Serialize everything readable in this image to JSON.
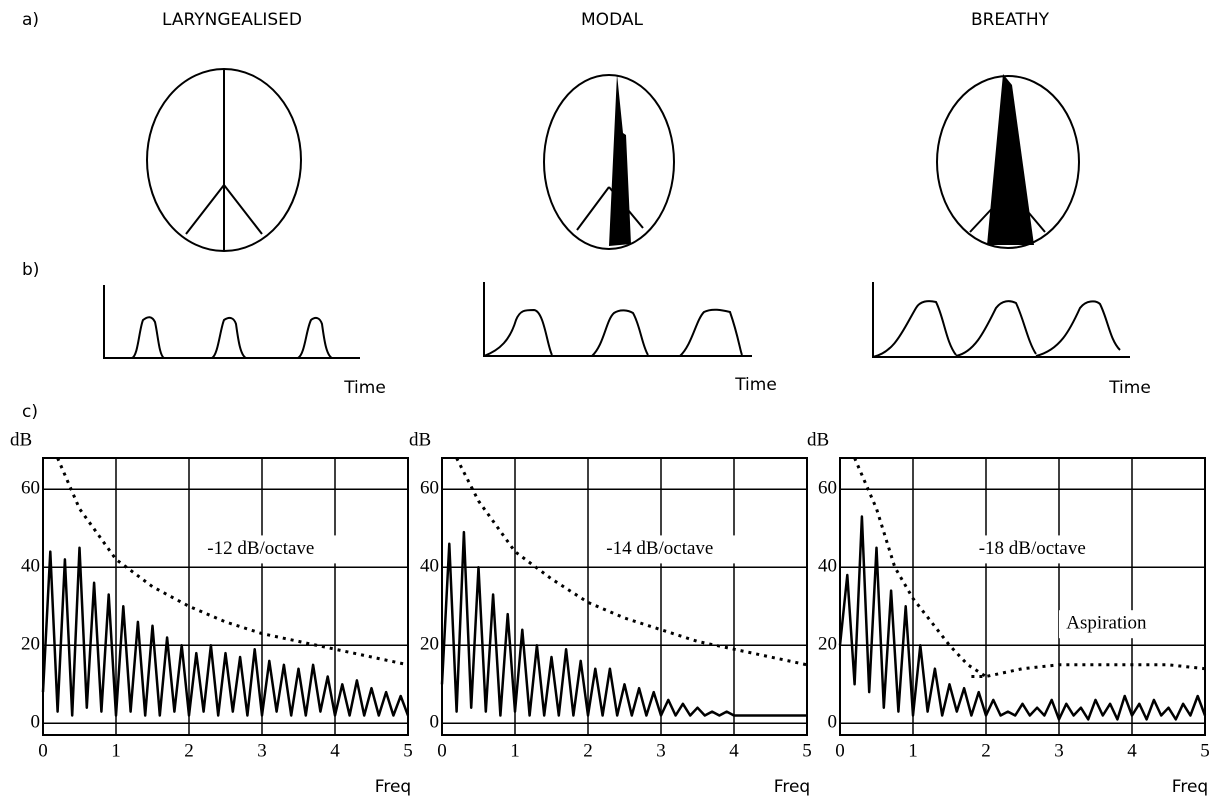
{
  "labels": {
    "a": "a)",
    "b": "b)",
    "c": "c)"
  },
  "columns": [
    {
      "title": "LARYNGEALISED"
    },
    {
      "title": "MODAL"
    },
    {
      "title": "BREATHY"
    }
  ],
  "waveform_axis_label": "Time",
  "chart_data": [
    {
      "type": "line",
      "annotation": "-12 dB/octave",
      "x_label": "Freq",
      "y_label": "dB",
      "xlim": [
        0,
        5
      ],
      "ylim": [
        -3,
        68
      ],
      "xticks": [
        0,
        1,
        2,
        3,
        4,
        5
      ],
      "yticks": [
        0,
        20,
        40,
        60
      ],
      "grid": true,
      "series": [
        {
          "color": "#000000",
          "style": "solid",
          "x": [
            0,
            0.1,
            0.2,
            0.3,
            0.4,
            0.5,
            0.6,
            0.7,
            0.8,
            0.9,
            1,
            1.1,
            1.2,
            1.3,
            1.4,
            1.5,
            1.6,
            1.7,
            1.8,
            1.9,
            2,
            2.1,
            2.2,
            2.3,
            2.4,
            2.5,
            2.6,
            2.7,
            2.8,
            2.9,
            3,
            3.1,
            3.2,
            3.3,
            3.4,
            3.5,
            3.6,
            3.7,
            3.8,
            3.9,
            4,
            4.1,
            4.2,
            4.3,
            4.4,
            4.5,
            4.6,
            4.7,
            4.8,
            4.9,
            5
          ],
          "values": [
            8,
            44,
            3,
            42,
            2,
            45,
            4,
            36,
            3,
            33,
            2,
            30,
            3,
            26,
            2,
            25,
            2,
            22,
            3,
            20,
            2,
            18,
            3,
            20,
            2,
            18,
            3,
            17,
            2,
            19,
            2,
            16,
            3,
            15,
            2,
            14,
            2,
            15,
            3,
            12,
            2,
            10,
            2,
            11,
            2,
            9,
            2,
            8,
            2,
            7,
            2
          ]
        },
        {
          "color": "#000000",
          "style": "dashed",
          "x": [
            0.2,
            0.5,
            1,
            1.5,
            2,
            2.5,
            3,
            3.5,
            4,
            4.5,
            5
          ],
          "values": [
            68,
            55,
            42,
            35,
            30,
            26,
            23,
            21,
            19,
            17,
            15
          ]
        }
      ]
    },
    {
      "type": "line",
      "annotation": "-14 dB/octave",
      "x_label": "Freq",
      "y_label": "dB",
      "xlim": [
        0,
        5
      ],
      "ylim": [
        -3,
        68
      ],
      "xticks": [
        0,
        1,
        2,
        3,
        4,
        5
      ],
      "yticks": [
        0,
        20,
        40,
        60
      ],
      "grid": true,
      "series": [
        {
          "color": "#000000",
          "style": "solid",
          "x": [
            0,
            0.1,
            0.2,
            0.3,
            0.4,
            0.5,
            0.6,
            0.7,
            0.8,
            0.9,
            1,
            1.1,
            1.2,
            1.3,
            1.4,
            1.5,
            1.6,
            1.7,
            1.8,
            1.9,
            2,
            2.1,
            2.2,
            2.3,
            2.4,
            2.5,
            2.6,
            2.7,
            2.8,
            2.9,
            3,
            3.1,
            3.2,
            3.3,
            3.4,
            3.5,
            3.6,
            3.7,
            3.8,
            3.9,
            4,
            4.1,
            4.2,
            4.3,
            4.4,
            4.5,
            4.6,
            4.7,
            4.8,
            4.9,
            5
          ],
          "values": [
            10,
            46,
            3,
            49,
            4,
            40,
            3,
            33,
            2,
            28,
            3,
            24,
            2,
            20,
            2,
            17,
            2,
            19,
            2,
            16,
            2,
            14,
            2,
            14,
            2,
            10,
            2,
            9,
            2,
            8,
            2,
            6,
            2,
            5,
            2,
            4,
            2,
            3,
            2,
            3,
            2,
            2,
            2,
            2,
            2,
            2,
            2,
            2,
            2,
            2,
            2
          ]
        },
        {
          "color": "#000000",
          "style": "dashed",
          "x": [
            0.2,
            0.5,
            1,
            1.5,
            2,
            2.5,
            3,
            3.5,
            4,
            4.5,
            5
          ],
          "values": [
            68,
            57,
            44,
            37,
            31,
            27,
            24,
            21,
            19,
            17,
            15
          ]
        }
      ]
    },
    {
      "type": "line",
      "annotation": "-18 dB/octave",
      "x_label": "Freq",
      "y_label": "dB",
      "xlim": [
        0,
        5
      ],
      "ylim": [
        -3,
        68
      ],
      "xticks": [
        0,
        1,
        2,
        3,
        4,
        5
      ],
      "yticks": [
        0,
        20,
        40,
        60
      ],
      "grid": true,
      "aspiration_label": "Aspiration",
      "series": [
        {
          "color": "#000000",
          "style": "solid",
          "x": [
            0,
            0.1,
            0.2,
            0.3,
            0.4,
            0.5,
            0.6,
            0.7,
            0.8,
            0.9,
            1,
            1.1,
            1.2,
            1.3,
            1.4,
            1.5,
            1.6,
            1.7,
            1.8,
            1.9,
            2,
            2.1,
            2.2,
            2.3,
            2.4,
            2.5,
            2.6,
            2.7,
            2.8,
            2.9,
            3,
            3.1,
            3.2,
            3.3,
            3.4,
            3.5,
            3.6,
            3.7,
            3.8,
            3.9,
            4,
            4.1,
            4.2,
            4.3,
            4.4,
            4.5,
            4.6,
            4.7,
            4.8,
            4.9,
            5
          ],
          "values": [
            20,
            38,
            10,
            53,
            8,
            45,
            4,
            34,
            3,
            30,
            2,
            20,
            3,
            14,
            2,
            10,
            3,
            9,
            2,
            8,
            2,
            6,
            2,
            3,
            2,
            5,
            2,
            4,
            2,
            6,
            1,
            5,
            2,
            4,
            1,
            6,
            2,
            5,
            1,
            7,
            2,
            5,
            1,
            6,
            2,
            4,
            1,
            5,
            2,
            7,
            2
          ]
        },
        {
          "color": "#000000",
          "style": "dashed",
          "x": [
            0.2,
            0.5,
            0.75,
            1,
            1.25,
            1.5,
            1.75,
            2
          ],
          "values": [
            68,
            55,
            40,
            32,
            26,
            20,
            15,
            12
          ]
        },
        {
          "color": "#000000",
          "style": "dashed",
          "x": [
            1.8,
            2,
            2.5,
            3,
            3.5,
            4,
            4.5,
            5
          ],
          "values": [
            12,
            12,
            14,
            15,
            15,
            15,
            15,
            14
          ]
        }
      ]
    }
  ]
}
